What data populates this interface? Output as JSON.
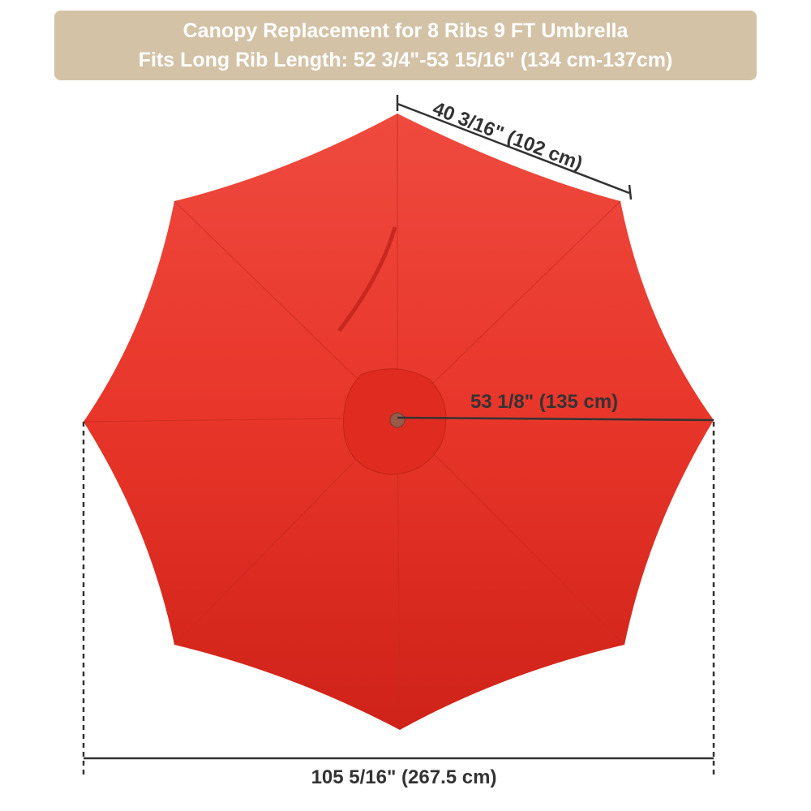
{
  "banner": {
    "line1": "Canopy Replacement for 8 Ribs 9 FT Umbrella",
    "line2": "Fits Long Rib Length: 52 3/4\"-53 15/16\" (134 cm-137cm)"
  },
  "dimensions": {
    "edge": "40 3/16\" (102 cm)",
    "rib": "53 1/8\" (135 cm)",
    "diameter": "105 5/16\" (267.5 cm)"
  },
  "colors": {
    "canopy": "#e8352a",
    "banner": "#d3c2a6",
    "dimension_line": "#333333"
  }
}
